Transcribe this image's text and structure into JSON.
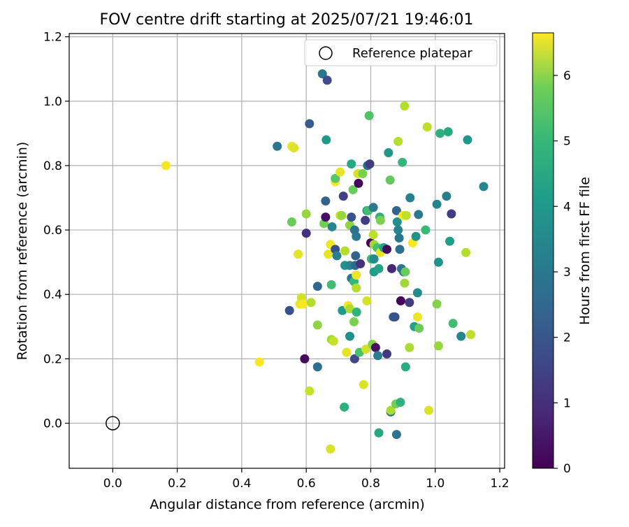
{
  "chart_data": {
    "type": "scatter",
    "title": "FOV centre drift starting at 2025/07/21 19:46:01",
    "xlabel": "Angular distance from reference (arcmin)",
    "ylabel": "Rotation from reference (arcmin)",
    "xlim": [
      -0.135,
      1.215
    ],
    "ylim": [
      -0.14,
      1.21
    ],
    "xticks": [
      "0.0",
      "0.2",
      "0.4",
      "0.6",
      "0.8",
      "1.0",
      "1.2"
    ],
    "yticks": [
      "0.0",
      "0.2",
      "0.4",
      "0.6",
      "0.8",
      "1.0",
      "1.2"
    ],
    "grid": true,
    "legend": {
      "position": "top-right",
      "entries": [
        {
          "label": "Reference platepar",
          "marker": "open-circle"
        }
      ]
    },
    "reference_point": {
      "x": 0.0,
      "y": 0.0
    },
    "colorbar": {
      "label": "Hours from first FF file",
      "colormap": "viridis",
      "range": [
        0,
        6.65
      ],
      "ticks": [
        "0",
        "1",
        "2",
        "3",
        "4",
        "5",
        "6"
      ]
    },
    "points": [
      [
        0.165,
        0.8,
        6.6
      ],
      [
        0.455,
        0.19,
        6.6
      ],
      [
        0.51,
        0.86,
        2.6
      ],
      [
        0.548,
        0.35,
        1.7
      ],
      [
        0.555,
        0.86,
        6.5
      ],
      [
        0.562,
        0.855,
        6.3
      ],
      [
        0.555,
        0.625,
        5.1
      ],
      [
        0.575,
        0.525,
        6.4
      ],
      [
        0.58,
        0.37,
        6.5
      ],
      [
        0.585,
        0.39,
        6.2
      ],
      [
        0.59,
        0.37,
        6.6
      ],
      [
        0.595,
        0.2,
        0.2
      ],
      [
        0.6,
        0.59,
        0.9
      ],
      [
        0.6,
        0.65,
        5.6
      ],
      [
        0.61,
        0.93,
        1.9
      ],
      [
        0.61,
        0.1,
        6.1
      ],
      [
        0.615,
        0.375,
        5.9
      ],
      [
        0.635,
        0.175,
        2.4
      ],
      [
        0.635,
        0.425,
        2.2
      ],
      [
        0.635,
        0.305,
        5.5
      ],
      [
        0.65,
        1.085,
        2.6
      ],
      [
        0.655,
        0.62,
        5.2
      ],
      [
        0.66,
        0.64,
        0.3
      ],
      [
        0.66,
        0.69,
        2.1
      ],
      [
        0.662,
        0.88,
        3.5
      ],
      [
        0.665,
        1.065,
        1.5
      ],
      [
        0.668,
        0.525,
        6.4
      ],
      [
        0.675,
        0.555,
        6.5
      ],
      [
        0.675,
        -0.08,
        6.3
      ],
      [
        0.678,
        0.43,
        4.6
      ],
      [
        0.678,
        0.26,
        5.7
      ],
      [
        0.68,
        0.61,
        3.1
      ],
      [
        0.685,
        0.255,
        6.1
      ],
      [
        0.69,
        0.75,
        6.6
      ],
      [
        0.69,
        0.76,
        4.9
      ],
      [
        0.69,
        0.54,
        1.6
      ],
      [
        0.695,
        0.52,
        2.9
      ],
      [
        0.705,
        0.78,
        6.4
      ],
      [
        0.705,
        0.645,
        6.2
      ],
      [
        0.71,
        0.645,
        5.6
      ],
      [
        0.712,
        0.35,
        3.6
      ],
      [
        0.715,
        0.705,
        1.3
      ],
      [
        0.718,
        0.05,
        4.2
      ],
      [
        0.72,
        0.535,
        5.9
      ],
      [
        0.72,
        0.49,
        3.4
      ],
      [
        0.725,
        0.22,
        6.4
      ],
      [
        0.73,
        0.365,
        6.5
      ],
      [
        0.735,
        0.355,
        5.8
      ],
      [
        0.735,
        0.615,
        5.5
      ],
      [
        0.735,
        0.49,
        3.1
      ],
      [
        0.735,
        0.27,
        3.3
      ],
      [
        0.74,
        0.805,
        4.0
      ],
      [
        0.74,
        0.64,
        1.7
      ],
      [
        0.74,
        0.45,
        2.7
      ],
      [
        0.745,
        0.725,
        5.1
      ],
      [
        0.748,
        0.44,
        4.4
      ],
      [
        0.748,
        0.315,
        5.3
      ],
      [
        0.75,
        0.6,
        2.5
      ],
      [
        0.75,
        0.2,
        1.5
      ],
      [
        0.752,
        0.49,
        2.2
      ],
      [
        0.753,
        0.52,
        2.1
      ],
      [
        0.755,
        0.58,
        2.7
      ],
      [
        0.755,
        0.46,
        6.5
      ],
      [
        0.755,
        0.42,
        5.9
      ],
      [
        0.756,
        0.345,
        4.3
      ],
      [
        0.76,
        0.775,
        6.2
      ],
      [
        0.762,
        0.745,
        0.1
      ],
      [
        0.765,
        0.22,
        4.7
      ],
      [
        0.768,
        0.495,
        0.9
      ],
      [
        0.775,
        0.775,
        5.3
      ],
      [
        0.778,
        0.12,
        6.3
      ],
      [
        0.783,
        0.63,
        1.2
      ],
      [
        0.785,
        0.23,
        6.2
      ],
      [
        0.788,
        0.66,
        3.8
      ],
      [
        0.788,
        0.38,
        6.2
      ],
      [
        0.79,
        0.8,
        2.3
      ],
      [
        0.792,
        0.66,
        4.6
      ],
      [
        0.795,
        0.955,
        4.8
      ],
      [
        0.797,
        0.805,
        1.2
      ],
      [
        0.8,
        0.56,
        0.1
      ],
      [
        0.802,
        0.51,
        4.5
      ],
      [
        0.805,
        0.245,
        5.4
      ],
      [
        0.808,
        0.67,
        2.7
      ],
      [
        0.808,
        0.585,
        6.0
      ],
      [
        0.81,
        0.51,
        3.2
      ],
      [
        0.81,
        0.555,
        5.7
      ],
      [
        0.81,
        0.47,
        3.7
      ],
      [
        0.815,
        0.235,
        0.3
      ],
      [
        0.82,
        0.545,
        4.7
      ],
      [
        0.822,
        0.21,
        2.8
      ],
      [
        0.825,
        -0.03,
        4.0
      ],
      [
        0.825,
        0.48,
        3.8
      ],
      [
        0.828,
        0.64,
        4.2
      ],
      [
        0.83,
        0.63,
        5.3
      ],
      [
        0.83,
        0.53,
        6.4
      ],
      [
        0.84,
        0.545,
        3.8
      ],
      [
        0.85,
        0.215,
        1.1
      ],
      [
        0.85,
        0.54,
        0.2
      ],
      [
        0.855,
        0.84,
        3.5
      ],
      [
        0.86,
        0.755,
        5.0
      ],
      [
        0.862,
        0.035,
        2.6
      ],
      [
        0.862,
        0.04,
        5.8
      ],
      [
        0.865,
        0.48,
        0.7
      ],
      [
        0.87,
        0.33,
        2.0
      ],
      [
        0.875,
        0.33,
        1.7
      ],
      [
        0.878,
        0.06,
        5.2
      ],
      [
        0.88,
        0.66,
        2.1
      ],
      [
        0.88,
        -0.035,
        2.5
      ],
      [
        0.882,
        0.625,
        3.3
      ],
      [
        0.885,
        0.875,
        5.9
      ],
      [
        0.885,
        0.6,
        3.0
      ],
      [
        0.888,
        0.575,
        2.6
      ],
      [
        0.89,
        0.54,
        2.4
      ],
      [
        0.892,
        0.065,
        4.3
      ],
      [
        0.893,
        0.38,
        0.1
      ],
      [
        0.895,
        0.48,
        2.6
      ],
      [
        0.898,
        0.81,
        4.4
      ],
      [
        0.9,
        0.645,
        6.6
      ],
      [
        0.902,
        0.47,
        2.3
      ],
      [
        0.905,
        0.985,
        5.9
      ],
      [
        0.905,
        0.435,
        5.7
      ],
      [
        0.907,
        0.47,
        5.1
      ],
      [
        0.908,
        0.175,
        4.1
      ],
      [
        0.91,
        0.645,
        6.0
      ],
      [
        0.92,
        0.235,
        5.8
      ],
      [
        0.92,
        0.375,
        1.2
      ],
      [
        0.922,
        0.7,
        2.9
      ],
      [
        0.93,
        0.56,
        6.6
      ],
      [
        0.935,
        0.3,
        3.8
      ],
      [
        0.94,
        0.58,
        3.4
      ],
      [
        0.945,
        0.405,
        3.2
      ],
      [
        0.945,
        0.33,
        6.5
      ],
      [
        0.948,
        0.648,
        2.7
      ],
      [
        0.95,
        0.295,
        5.1
      ],
      [
        0.97,
        0.6,
        4.5
      ],
      [
        0.975,
        0.92,
        6.0
      ],
      [
        0.98,
        0.04,
        6.3
      ],
      [
        1.005,
        0.37,
        5.4
      ],
      [
        1.005,
        0.68,
        3.0
      ],
      [
        1.01,
        0.24,
        5.6
      ],
      [
        1.01,
        0.5,
        3.4
      ],
      [
        1.015,
        0.9,
        4.2
      ],
      [
        1.035,
        0.705,
        2.8
      ],
      [
        1.04,
        0.905,
        4.0
      ],
      [
        1.045,
        0.565,
        3.7
      ],
      [
        1.05,
        0.65,
        1.2
      ],
      [
        1.055,
        0.31,
        4.6
      ],
      [
        1.08,
        0.27,
        3.1
      ],
      [
        1.095,
        0.53,
        5.9
      ],
      [
        1.1,
        0.88,
        3.5
      ],
      [
        1.11,
        0.275,
        6.0
      ],
      [
        1.15,
        0.735,
        3.1
      ]
    ]
  }
}
